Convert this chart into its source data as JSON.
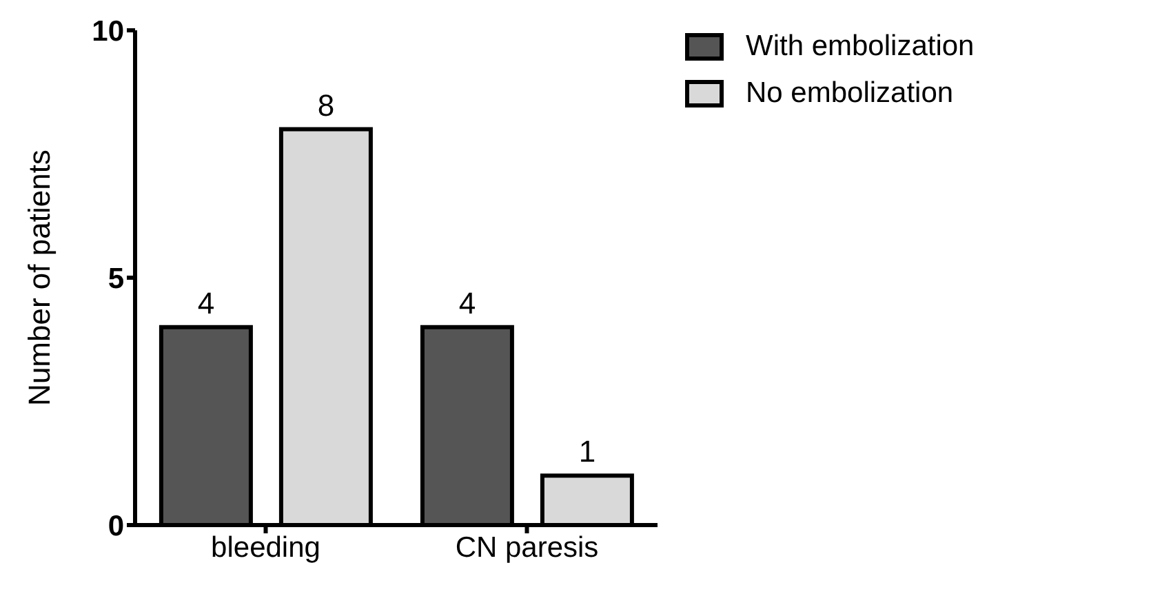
{
  "chart_data": {
    "type": "bar",
    "ylabel": "Number of patients",
    "categories": [
      "bleeding",
      "CN paresis"
    ],
    "series": [
      {
        "name": "With embolization",
        "color": "#555555",
        "values": [
          4,
          4
        ]
      },
      {
        "name": "No embolization",
        "color": "#d9d9d9",
        "values": [
          8,
          1
        ]
      }
    ],
    "ylim": [
      0,
      10
    ],
    "yticks": [
      0,
      5,
      10
    ],
    "data_labels": true,
    "grid": false,
    "legend": "top right"
  }
}
